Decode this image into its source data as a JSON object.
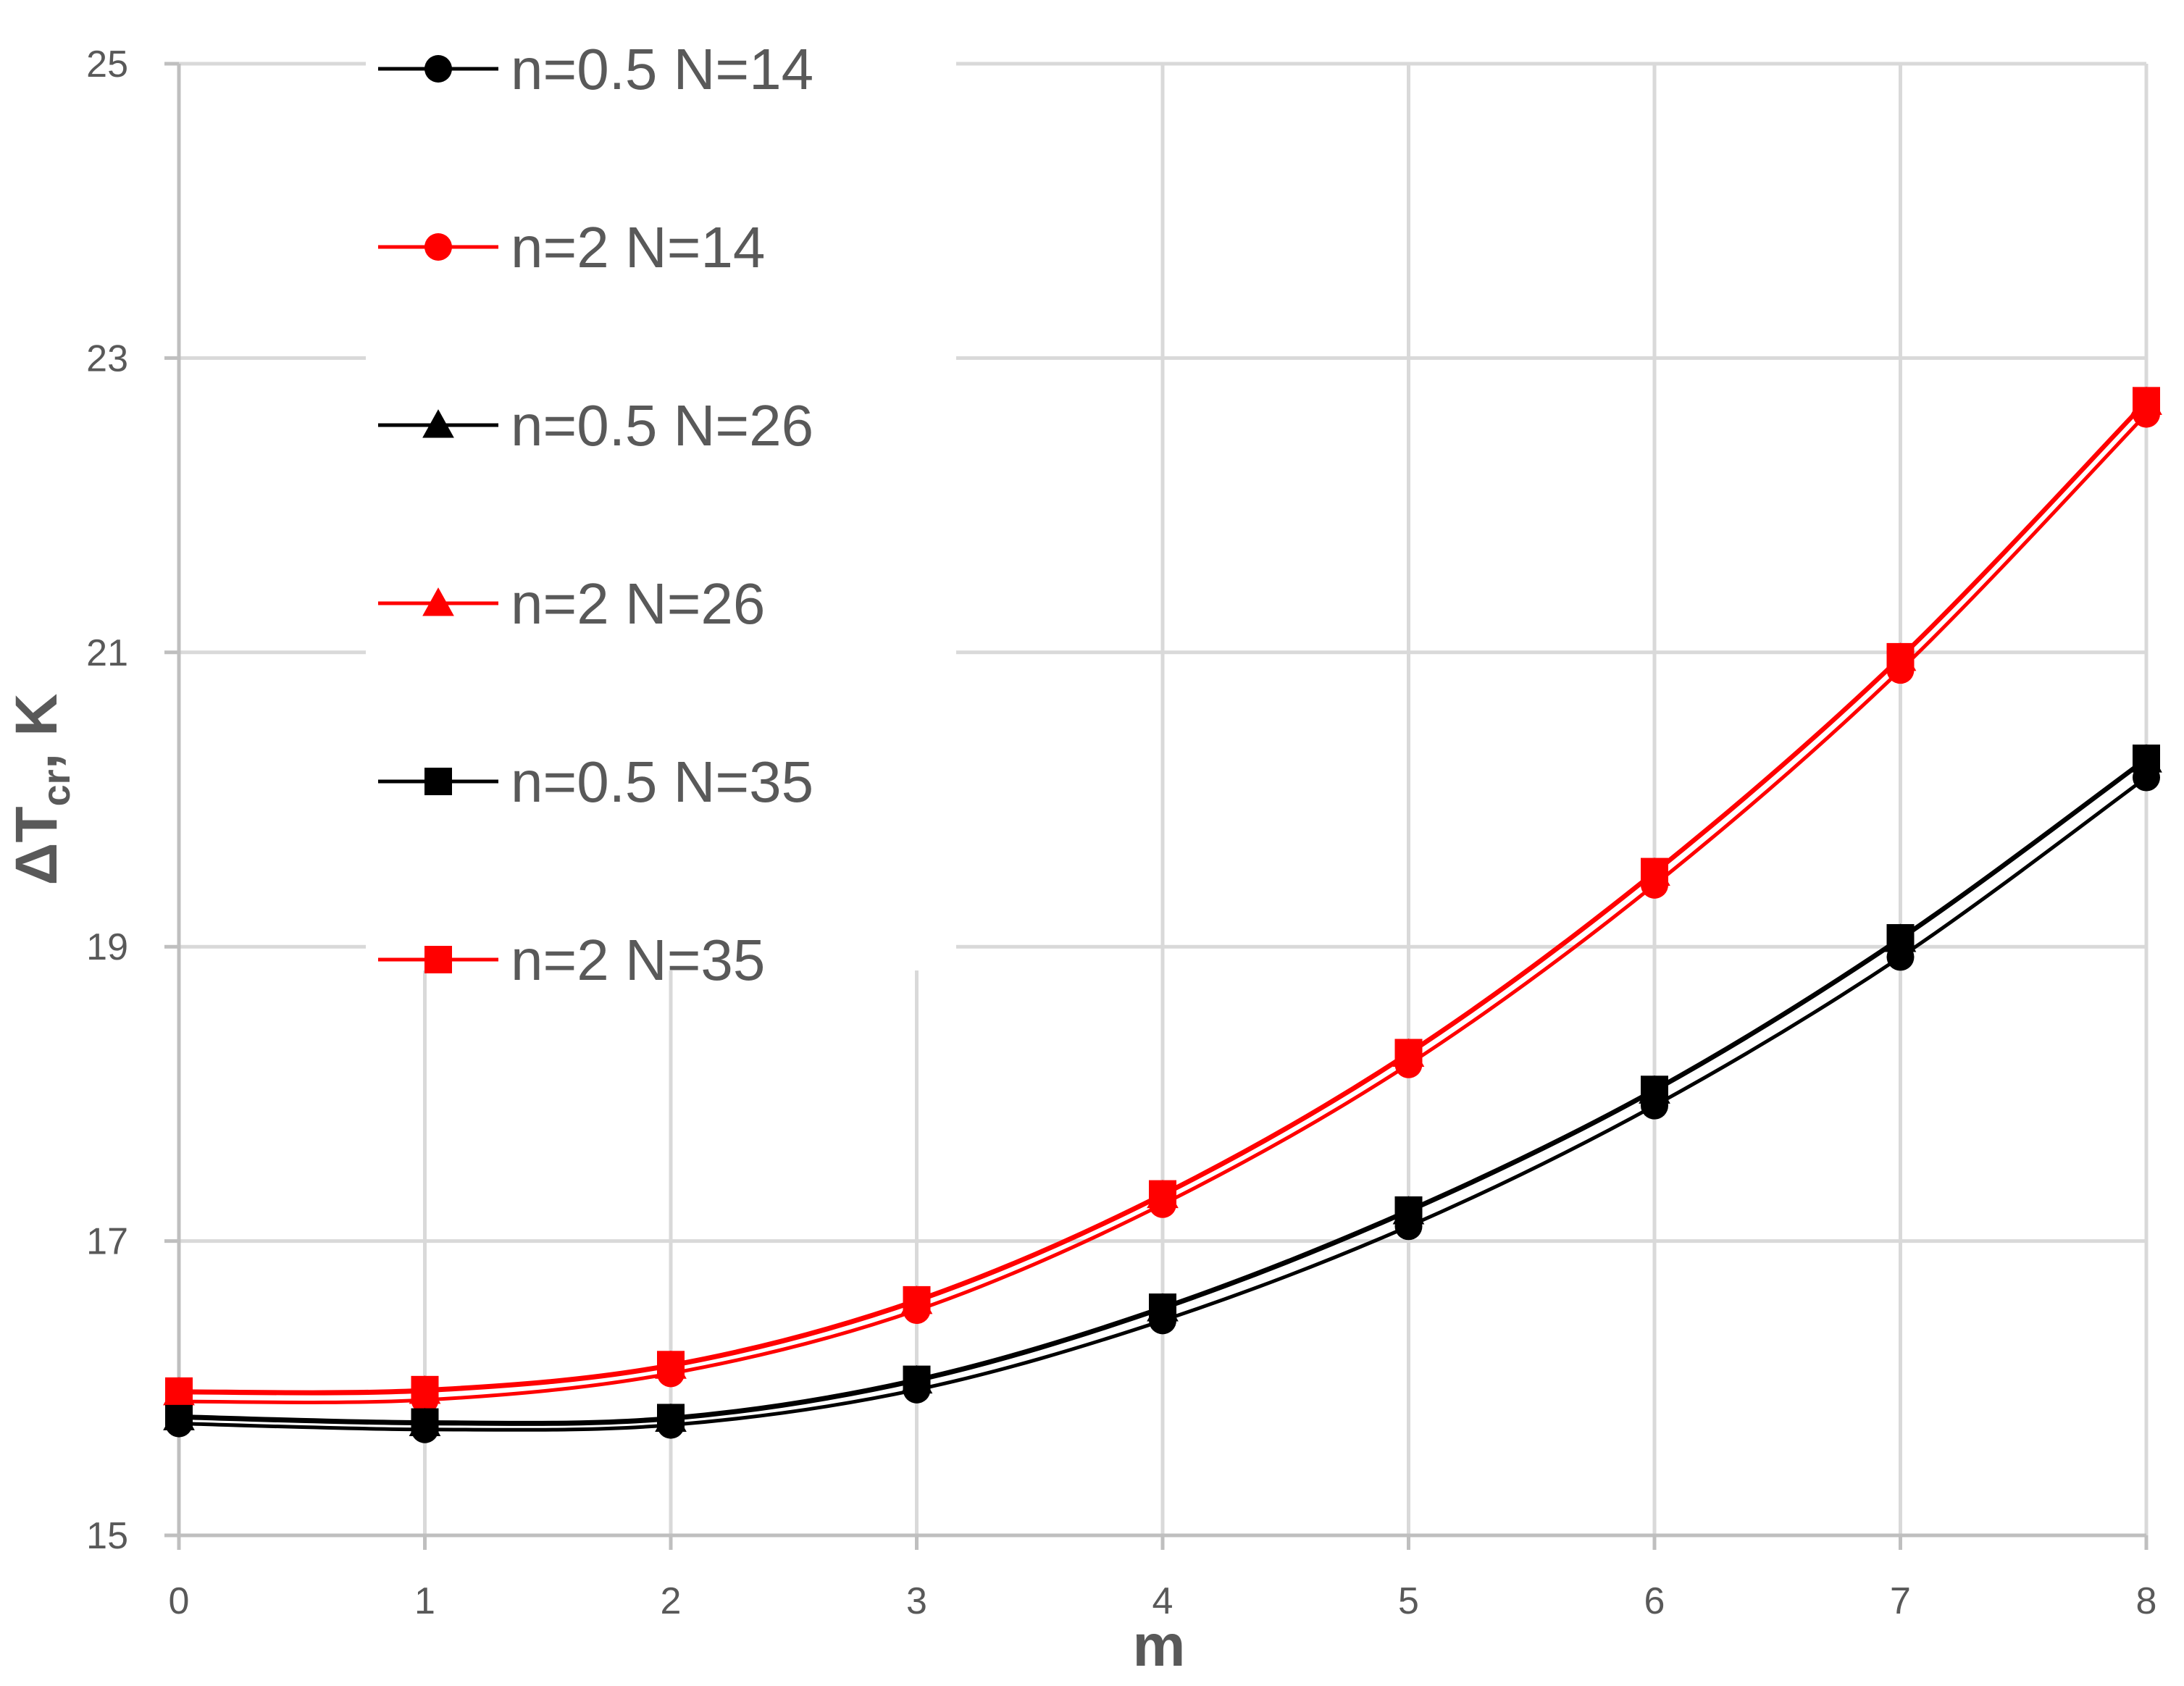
{
  "chart_data": {
    "type": "line",
    "title": "",
    "xlabel": "m",
    "ylabel": {
      "main": "ΔT",
      "sub": "cr",
      "suffix": ", K"
    },
    "xlim": [
      0,
      8
    ],
    "ylim": [
      15,
      25
    ],
    "x_ticks": [
      0,
      1,
      2,
      3,
      4,
      5,
      6,
      7,
      8
    ],
    "y_ticks": [
      15,
      17,
      19,
      21,
      23,
      25
    ],
    "grid": true,
    "legend_position": "top-left",
    "x": [
      0,
      1,
      2,
      3,
      4,
      5,
      6,
      7,
      8
    ],
    "series": [
      {
        "name": "n=0.5 N=14",
        "color": "#000000",
        "marker": "circle",
        "values": [
          15.76,
          15.72,
          15.75,
          15.99,
          16.46,
          17.1,
          17.92,
          18.93,
          20.15
        ]
      },
      {
        "name": "n=2 N=14",
        "color": "#ff0000",
        "marker": "circle",
        "values": [
          15.91,
          15.92,
          16.1,
          16.53,
          17.25,
          18.2,
          19.42,
          20.88,
          22.62
        ]
      },
      {
        "name": "n=0.5 N=26",
        "color": "#000000",
        "marker": "triangle",
        "values": [
          15.8,
          15.76,
          15.79,
          16.05,
          16.54,
          17.2,
          18.02,
          19.05,
          20.27
        ]
      },
      {
        "name": "n=2 N=26",
        "color": "#ff0000",
        "marker": "triangle",
        "values": [
          15.97,
          15.98,
          16.15,
          16.59,
          17.31,
          18.27,
          19.5,
          20.96,
          22.7
        ]
      },
      {
        "name": "n=0.5 N=35",
        "color": "#000000",
        "marker": "square",
        "values": [
          15.81,
          15.77,
          15.8,
          16.06,
          16.55,
          17.21,
          18.03,
          19.06,
          20.28
        ]
      },
      {
        "name": "n=2 N=35",
        "color": "#ff0000",
        "marker": "square",
        "values": [
          15.98,
          15.99,
          16.16,
          16.6,
          17.32,
          18.28,
          19.51,
          20.97,
          22.71
        ]
      }
    ]
  }
}
